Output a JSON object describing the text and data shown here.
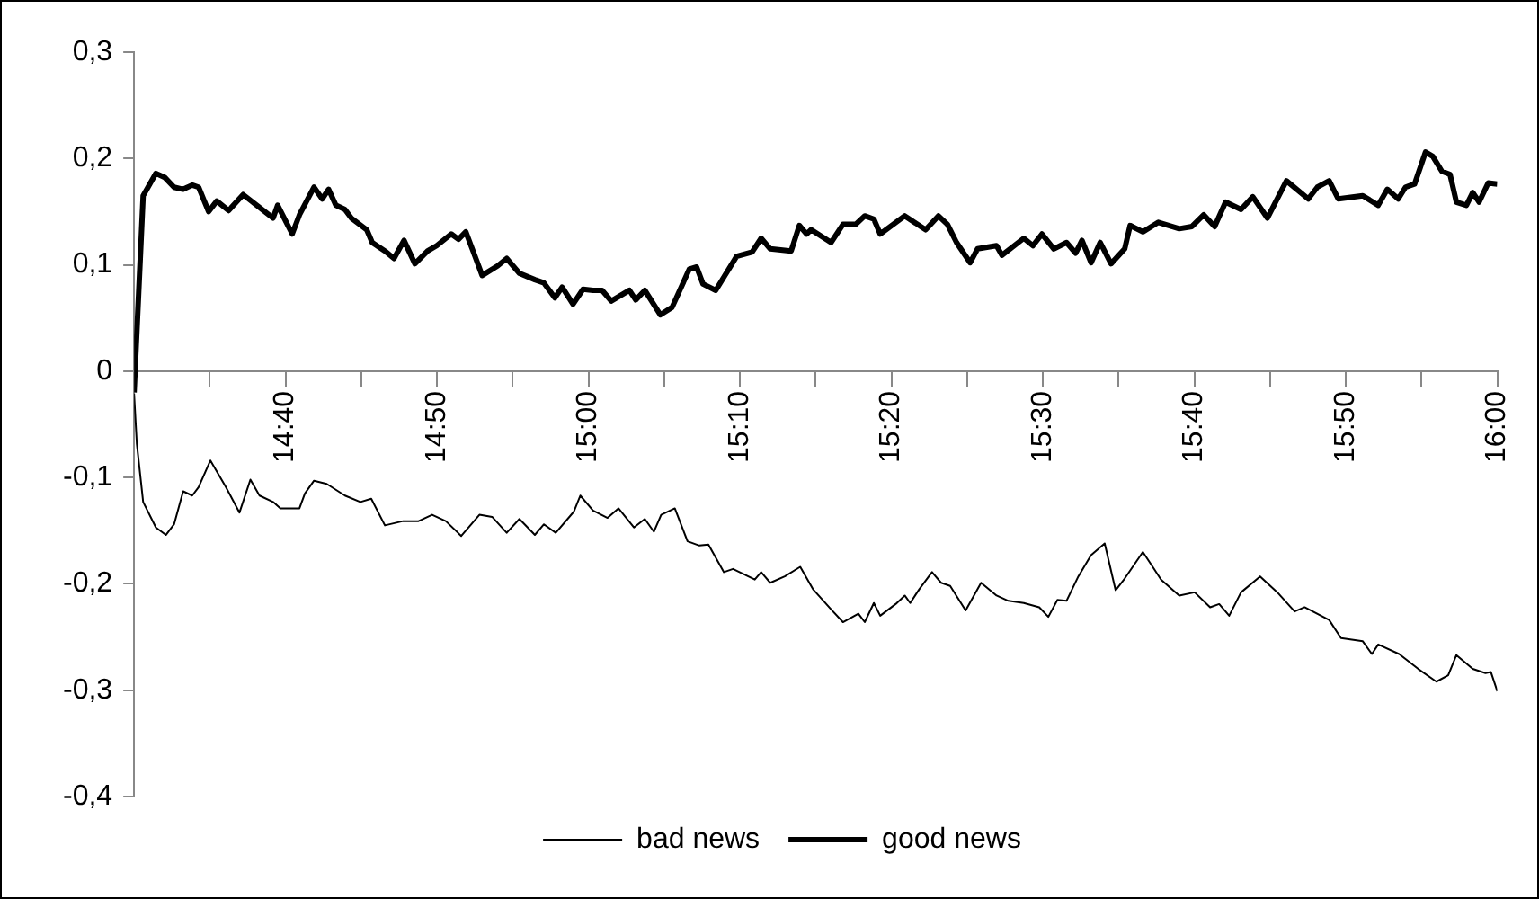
{
  "chart_data": {
    "type": "line",
    "legend": "bottom",
    "grid": false,
    "marker": "none",
    "line_style": "solid",
    "xlim": [
      14.5,
      16
    ],
    "xticks": [
      {
        "value": 14.5833,
        "label": null
      },
      {
        "value": 14.6667,
        "label": "14:40"
      },
      {
        "value": 14.75,
        "label": null
      },
      {
        "value": 14.8333,
        "label": "14:50"
      },
      {
        "value": 14.9167,
        "label": null
      },
      {
        "value": 15,
        "label": "15:00"
      },
      {
        "value": 15.0833,
        "label": null
      },
      {
        "value": 15.1667,
        "label": "15:10"
      },
      {
        "value": 15.25,
        "label": null
      },
      {
        "value": 15.3333,
        "label": "15:20"
      },
      {
        "value": 15.4167,
        "label": null
      },
      {
        "value": 15.5,
        "label": "15:30"
      },
      {
        "value": 15.5833,
        "label": null
      },
      {
        "value": 15.6667,
        "label": "15:40"
      },
      {
        "value": 15.75,
        "label": null
      },
      {
        "value": 15.8333,
        "label": "15:50"
      },
      {
        "value": 15.9167,
        "label": null
      },
      {
        "value": 16,
        "label": "16:00"
      }
    ],
    "ylim": [
      -0.4,
      0.3
    ],
    "yticks": [
      {
        "value": -0.4,
        "label": "-0,4"
      },
      {
        "value": -0.3,
        "label": "-0,3"
      },
      {
        "value": -0.2,
        "label": "-0,2"
      },
      {
        "value": -0.1,
        "label": "-0,1"
      },
      {
        "value": 0,
        "label": "0"
      },
      {
        "value": 0.1,
        "label": "0,1"
      },
      {
        "value": 0.2,
        "label": "0,2"
      },
      {
        "value": 0.3,
        "label": "0,3"
      }
    ],
    "series": [
      {
        "name": "bad news",
        "color": "#000000",
        "x": [
          14.5,
          14.503,
          14.51,
          14.524,
          14.535,
          14.544,
          14.554,
          14.564,
          14.571,
          14.584,
          14.601,
          14.616,
          14.628,
          14.638,
          14.653,
          14.661,
          14.682,
          14.688,
          14.698,
          14.712,
          14.732,
          14.749,
          14.761,
          14.776,
          14.796,
          14.813,
          14.828,
          14.843,
          14.86,
          14.88,
          14.894,
          14.91,
          14.924,
          14.941,
          14.951,
          14.964,
          14.984,
          14.991,
          15.005,
          15.021,
          15.033,
          15.05,
          15.062,
          15.072,
          15.08,
          15.095,
          15.109,
          15.122,
          15.132,
          15.149,
          15.159,
          15.183,
          15.19,
          15.2,
          15.216,
          15.233,
          15.247,
          15.267,
          15.28,
          15.297,
          15.304,
          15.314,
          15.321,
          15.338,
          15.348,
          15.354,
          15.364,
          15.378,
          15.388,
          15.398,
          15.415,
          15.432,
          15.449,
          15.462,
          15.479,
          15.496,
          15.506,
          15.516,
          15.526,
          15.539,
          15.553,
          15.568,
          15.58,
          15.59,
          15.61,
          15.62,
          15.63,
          15.65,
          15.667,
          15.684,
          15.694,
          15.705,
          15.718,
          15.739,
          15.758,
          15.777,
          15.788,
          15.815,
          15.828,
          15.852,
          15.862,
          15.869,
          15.892,
          15.913,
          15.933,
          15.946,
          15.955,
          15.973,
          15.987,
          15.993,
          16
        ],
        "values": [
          -0.021,
          -0.068,
          -0.123,
          -0.147,
          -0.154,
          -0.144,
          -0.113,
          -0.117,
          -0.109,
          -0.084,
          -0.109,
          -0.133,
          -0.102,
          -0.117,
          -0.123,
          -0.129,
          -0.129,
          -0.115,
          -0.103,
          -0.106,
          -0.117,
          -0.123,
          -0.12,
          -0.145,
          -0.141,
          -0.141,
          -0.135,
          -0.141,
          -0.155,
          -0.135,
          -0.137,
          -0.152,
          -0.139,
          -0.154,
          -0.144,
          -0.152,
          -0.132,
          -0.117,
          -0.131,
          -0.138,
          -0.129,
          -0.147,
          -0.139,
          -0.151,
          -0.135,
          -0.129,
          -0.16,
          -0.164,
          -0.163,
          -0.189,
          -0.186,
          -0.196,
          -0.189,
          -0.199,
          -0.193,
          -0.184,
          -0.205,
          -0.224,
          -0.236,
          -0.228,
          -0.236,
          -0.218,
          -0.23,
          -0.219,
          -0.211,
          -0.218,
          -0.205,
          -0.189,
          -0.199,
          -0.202,
          -0.225,
          -0.199,
          -0.211,
          -0.216,
          -0.218,
          -0.222,
          -0.231,
          -0.215,
          -0.216,
          -0.193,
          -0.173,
          -0.162,
          -0.206,
          -0.195,
          -0.17,
          -0.183,
          -0.196,
          -0.211,
          -0.208,
          -0.222,
          -0.219,
          -0.23,
          -0.208,
          -0.193,
          -0.208,
          -0.226,
          -0.222,
          -0.234,
          -0.251,
          -0.254,
          -0.266,
          -0.257,
          -0.266,
          -0.28,
          -0.292,
          -0.286,
          -0.267,
          -0.28,
          -0.284,
          -0.283,
          -0.301
        ]
      },
      {
        "name": "good news",
        "color": "#000000",
        "x": [
          14.5,
          14.51,
          14.524,
          14.534,
          14.544,
          14.554,
          14.564,
          14.571,
          14.582,
          14.591,
          14.604,
          14.62,
          14.635,
          14.653,
          14.658,
          14.674,
          14.682,
          14.698,
          14.707,
          14.714,
          14.722,
          14.732,
          14.739,
          14.756,
          14.762,
          14.776,
          14.786,
          14.797,
          14.809,
          14.823,
          14.833,
          14.849,
          14.857,
          14.865,
          14.873,
          14.883,
          14.9,
          14.91,
          14.924,
          14.941,
          14.951,
          14.963,
          14.971,
          14.983,
          14.994,
          15.005,
          15.015,
          15.025,
          15.045,
          15.052,
          15.062,
          15.079,
          15.092,
          15.111,
          15.119,
          15.126,
          15.14,
          15.163,
          15.18,
          15.19,
          15.2,
          15.223,
          15.232,
          15.24,
          15.245,
          15.267,
          15.28,
          15.294,
          15.304,
          15.314,
          15.321,
          15.348,
          15.371,
          15.385,
          15.395,
          15.405,
          15.42,
          15.428,
          15.449,
          15.455,
          15.479,
          15.489,
          15.499,
          15.512,
          15.526,
          15.536,
          15.543,
          15.553,
          15.563,
          15.575,
          15.59,
          15.596,
          15.61,
          15.627,
          15.65,
          15.664,
          15.677,
          15.689,
          15.701,
          15.718,
          15.731,
          15.747,
          15.768,
          15.792,
          15.802,
          15.815,
          15.825,
          15.852,
          15.869,
          15.879,
          15.891,
          15.899,
          15.909,
          15.921,
          15.929,
          15.939,
          15.948,
          15.955,
          15.966,
          15.973,
          15.98,
          15.99,
          16
        ],
        "values": [
          -0.02,
          0.165,
          0.186,
          0.182,
          0.173,
          0.171,
          0.175,
          0.173,
          0.15,
          0.16,
          0.151,
          0.166,
          0.156,
          0.144,
          0.156,
          0.129,
          0.147,
          0.173,
          0.162,
          0.171,
          0.156,
          0.152,
          0.144,
          0.133,
          0.121,
          0.113,
          0.106,
          0.123,
          0.101,
          0.113,
          0.118,
          0.129,
          0.124,
          0.131,
          0.113,
          0.09,
          0.099,
          0.106,
          0.092,
          0.086,
          0.083,
          0.069,
          0.079,
          0.063,
          0.077,
          0.076,
          0.076,
          0.066,
          0.076,
          0.067,
          0.076,
          0.053,
          0.06,
          0.096,
          0.098,
          0.082,
          0.076,
          0.108,
          0.112,
          0.125,
          0.115,
          0.113,
          0.137,
          0.129,
          0.133,
          0.121,
          0.138,
          0.138,
          0.146,
          0.143,
          0.129,
          0.146,
          0.133,
          0.146,
          0.138,
          0.121,
          0.102,
          0.115,
          0.118,
          0.109,
          0.125,
          0.118,
          0.129,
          0.115,
          0.121,
          0.111,
          0.123,
          0.102,
          0.121,
          0.101,
          0.115,
          0.137,
          0.131,
          0.14,
          0.134,
          0.136,
          0.147,
          0.136,
          0.159,
          0.152,
          0.164,
          0.144,
          0.179,
          0.162,
          0.173,
          0.179,
          0.162,
          0.165,
          0.156,
          0.171,
          0.162,
          0.173,
          0.176,
          0.206,
          0.202,
          0.188,
          0.185,
          0.159,
          0.156,
          0.168,
          0.159,
          0.177,
          0.176
        ]
      }
    ]
  }
}
